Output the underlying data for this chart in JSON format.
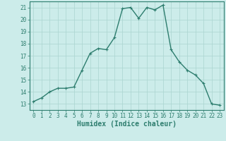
{
  "x": [
    0,
    1,
    2,
    3,
    4,
    5,
    6,
    7,
    8,
    9,
    10,
    11,
    12,
    13,
    14,
    15,
    16,
    17,
    18,
    19,
    20,
    21,
    22,
    23
  ],
  "y": [
    13.2,
    13.5,
    14.0,
    14.3,
    14.3,
    14.4,
    15.8,
    17.2,
    17.6,
    17.5,
    18.5,
    20.9,
    21.0,
    20.1,
    21.0,
    20.8,
    21.2,
    17.5,
    16.5,
    15.8,
    15.4,
    14.7,
    13.0,
    12.9
  ],
  "line_color": "#2d7d6e",
  "marker": "+",
  "marker_size": 3,
  "marker_linewidth": 0.8,
  "bg_color": "#ccecea",
  "grid_color": "#aad4d0",
  "xlabel": "Humidex (Indice chaleur)",
  "xlim": [
    -0.5,
    23.5
  ],
  "ylim": [
    12.5,
    21.5
  ],
  "yticks": [
    13,
    14,
    15,
    16,
    17,
    18,
    19,
    20,
    21
  ],
  "xticks": [
    0,
    1,
    2,
    3,
    4,
    5,
    6,
    7,
    8,
    9,
    10,
    11,
    12,
    13,
    14,
    15,
    16,
    17,
    18,
    19,
    20,
    21,
    22,
    23
  ],
  "tick_color": "#2d7d6e",
  "label_color": "#2d7d6e",
  "spine_color": "#2d7d6e",
  "tick_fontsize": 5.5,
  "xlabel_fontsize": 7,
  "line_width": 1.0
}
